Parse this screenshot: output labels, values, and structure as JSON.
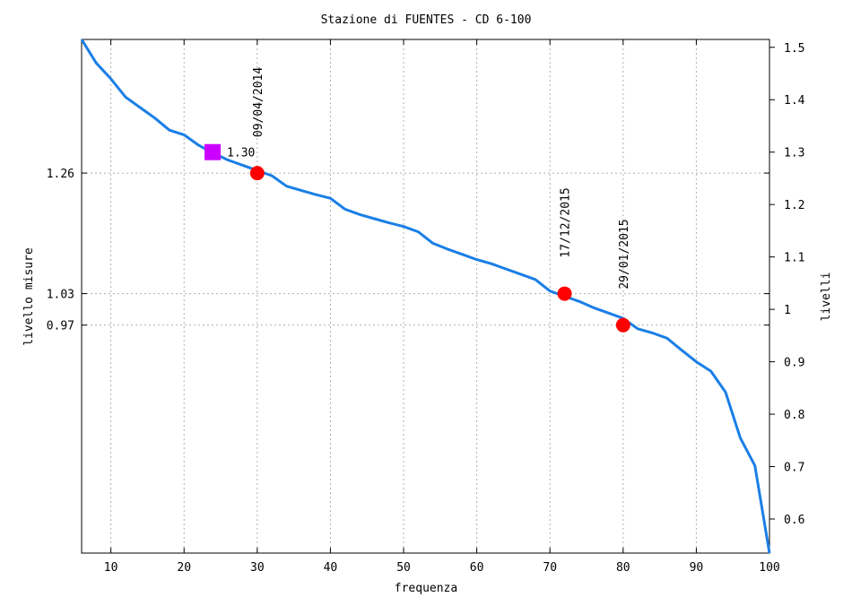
{
  "chart_data": {
    "type": "line",
    "title": "Stazione di FUENTES - CD 6-100",
    "xlabel": "frequenza",
    "ylabel_left": "livello misure",
    "ylabel_right": "livelli",
    "xlim": [
      6,
      100
    ],
    "ylim": [
      0.535,
      1.515
    ],
    "x_ticks": [
      10,
      20,
      30,
      40,
      50,
      60,
      70,
      80,
      90,
      100
    ],
    "y_ticks_right": [
      0.6,
      0.7,
      0.8,
      0.9,
      1,
      1.1,
      1.2,
      1.3,
      1.4,
      1.5
    ],
    "y_ticks_left": [
      1.26,
      1.03,
      0.97
    ],
    "grid": true,
    "series": [
      {
        "color": "#1a7fe6",
        "points": [
          [
            6,
            1.515
          ],
          [
            8,
            1.47
          ],
          [
            10,
            1.44
          ],
          [
            12,
            1.405
          ],
          [
            14,
            1.385
          ],
          [
            16,
            1.365
          ],
          [
            18,
            1.342
          ],
          [
            20,
            1.333
          ],
          [
            22,
            1.313
          ],
          [
            24,
            1.298
          ],
          [
            26,
            1.285
          ],
          [
            28,
            1.275
          ],
          [
            30,
            1.265
          ],
          [
            32,
            1.255
          ],
          [
            34,
            1.235
          ],
          [
            36,
            1.227
          ],
          [
            38,
            1.219
          ],
          [
            40,
            1.212
          ],
          [
            42,
            1.191
          ],
          [
            44,
            1.181
          ],
          [
            46,
            1.173
          ],
          [
            48,
            1.165
          ],
          [
            50,
            1.158
          ],
          [
            52,
            1.148
          ],
          [
            54,
            1.126
          ],
          [
            56,
            1.115
          ],
          [
            58,
            1.105
          ],
          [
            60,
            1.095
          ],
          [
            62,
            1.087
          ],
          [
            64,
            1.077
          ],
          [
            66,
            1.067
          ],
          [
            68,
            1.057
          ],
          [
            70,
            1.035
          ],
          [
            72,
            1.025
          ],
          [
            74,
            1.015
          ],
          [
            76,
            1.003
          ],
          [
            78,
            0.993
          ],
          [
            80,
            0.983
          ],
          [
            82,
            0.963
          ],
          [
            84,
            0.955
          ],
          [
            86,
            0.945
          ],
          [
            88,
            0.922
          ],
          [
            90,
            0.9
          ],
          [
            92,
            0.882
          ],
          [
            94,
            0.842
          ],
          [
            96,
            0.755
          ],
          [
            98,
            0.702
          ],
          [
            100,
            0.535
          ]
        ]
      }
    ],
    "markers": [
      {
        "x": 30,
        "y": 1.26,
        "date": "09/04/2014",
        "color": "#ff0000"
      },
      {
        "x": 72,
        "y": 1.03,
        "date": "17/12/2015",
        "color": "#ff0000"
      },
      {
        "x": 80,
        "y": 0.97,
        "date": "29/01/2015",
        "color": "#ff0000"
      }
    ],
    "square_marker": {
      "x": 23.9,
      "y": 1.3,
      "label": "1.30",
      "color": "#cc00ff"
    }
  }
}
